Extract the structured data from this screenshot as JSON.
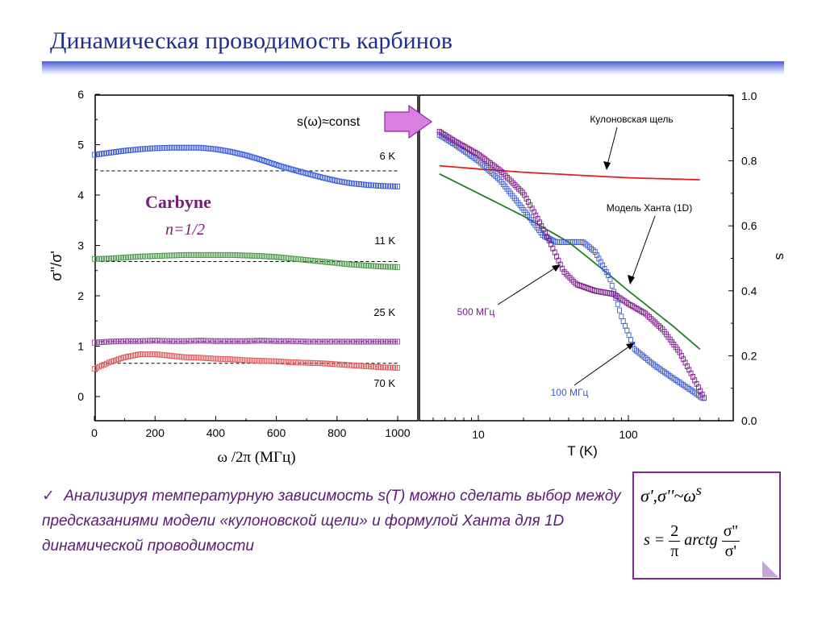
{
  "slide": {
    "title": "Динамическая проводимость карбинов"
  },
  "bullet": {
    "check": "✓",
    "text": "Анализируя температурную зависимость s(T) можно сделать выбор между предсказаниями модели «кулоновской щели» и формулой Ханта для 1D динамической  проводимости"
  },
  "formula": {
    "line1": "σ',σ''~ω",
    "line1_sup": "s",
    "line2_left": "s =",
    "line2_frac1_num": "2",
    "line2_frac1_den": "π",
    "line2_func": "arctg",
    "line2_frac2_num": "σ''",
    "line2_frac2_den": "σ'"
  },
  "chart_data": [
    {
      "type": "scatter",
      "xlabel": "ω /2π (МГц)",
      "ylabel": "σ''/σ'",
      "xlim": [
        0,
        1000
      ],
      "ylim": [
        -0.5,
        6
      ],
      "xticks": [
        "0",
        "200",
        "400",
        "600",
        "800",
        "1000"
      ],
      "yticks": [
        "0",
        "1",
        "2",
        "3",
        "4",
        "5",
        "6"
      ],
      "annotations": [
        "Carbyne",
        "n=1/2"
      ],
      "series": [
        {
          "name": "6 K",
          "color": "#3b5bd8",
          "ref": 4.48,
          "x": [
            0,
            50,
            100,
            150,
            200,
            250,
            300,
            350,
            400,
            450,
            500,
            550,
            600,
            650,
            700,
            750,
            800,
            850,
            900,
            950,
            1000
          ],
          "y": [
            4.8,
            4.84,
            4.88,
            4.91,
            4.93,
            4.94,
            4.94,
            4.94,
            4.91,
            4.86,
            4.79,
            4.7,
            4.6,
            4.51,
            4.43,
            4.35,
            4.28,
            4.23,
            4.2,
            4.18,
            4.17
          ]
        },
        {
          "name": "11 K",
          "color": "#4a9a4a",
          "ref": 2.68,
          "x": [
            0,
            50,
            100,
            150,
            200,
            250,
            300,
            350,
            400,
            450,
            500,
            550,
            600,
            650,
            700,
            750,
            800,
            850,
            900,
            950,
            1000
          ],
          "y": [
            2.73,
            2.74,
            2.76,
            2.78,
            2.79,
            2.8,
            2.81,
            2.81,
            2.81,
            2.81,
            2.8,
            2.79,
            2.77,
            2.74,
            2.71,
            2.68,
            2.65,
            2.62,
            2.6,
            2.58,
            2.57
          ]
        },
        {
          "name": "25 K",
          "color": "#9a4aa8",
          "ref": 1.09,
          "x": [
            0,
            50,
            100,
            150,
            200,
            250,
            300,
            350,
            400,
            450,
            500,
            550,
            600,
            650,
            700,
            750,
            800,
            850,
            900,
            950,
            1000
          ],
          "y": [
            1.07,
            1.09,
            1.1,
            1.1,
            1.11,
            1.1,
            1.1,
            1.11,
            1.1,
            1.1,
            1.1,
            1.11,
            1.1,
            1.1,
            1.09,
            1.09,
            1.09,
            1.09,
            1.09,
            1.09,
            1.09
          ]
        },
        {
          "name": "70 K",
          "color": "#e05a5a",
          "ref": 0.66,
          "x": [
            0,
            50,
            100,
            150,
            200,
            250,
            300,
            350,
            400,
            450,
            500,
            550,
            600,
            650,
            700,
            750,
            800,
            850,
            900,
            950,
            1000
          ],
          "y": [
            0.55,
            0.68,
            0.78,
            0.84,
            0.84,
            0.81,
            0.78,
            0.77,
            0.75,
            0.74,
            0.72,
            0.71,
            0.7,
            0.68,
            0.67,
            0.66,
            0.64,
            0.62,
            0.6,
            0.58,
            0.57
          ]
        }
      ]
    },
    {
      "type": "line",
      "xlabel": "T (K)",
      "ylabel": "s",
      "xscale": "log",
      "xlim": [
        4,
        450
      ],
      "ylim": [
        0,
        1.0
      ],
      "xticks": [
        "10",
        "100"
      ],
      "yticks": [
        "0.0",
        "0.2",
        "0.4",
        "0.6",
        "0.8",
        "1.0"
      ],
      "annotations": [
        "Кулоновская щель",
        "Модель Ханта (1D)",
        "500 МГц",
        "100 МГц"
      ],
      "series": [
        {
          "name": "Кулоновская щель",
          "color": "#e02020",
          "style": "line",
          "x": [
            5.5,
            10,
            20,
            50,
            100,
            200,
            300
          ],
          "y": [
            0.785,
            0.775,
            0.765,
            0.755,
            0.748,
            0.744,
            0.742
          ]
        },
        {
          "name": "Модель Ханта (1D)",
          "color": "#208020",
          "style": "line",
          "x": [
            5.5,
            10,
            20,
            40,
            70,
            100,
            200,
            300
          ],
          "y": [
            0.76,
            0.7,
            0.63,
            0.55,
            0.46,
            0.4,
            0.29,
            0.22
          ]
        },
        {
          "name": "100 МГц",
          "color": "#3b5bd8",
          "style": "marker",
          "x": [
            5.5,
            7,
            10,
            14,
            20,
            27,
            33,
            40,
            50,
            60,
            75,
            90,
            110,
            150,
            200,
            270,
            310
          ],
          "y": [
            0.88,
            0.85,
            0.8,
            0.74,
            0.65,
            0.57,
            0.55,
            0.55,
            0.55,
            0.52,
            0.44,
            0.32,
            0.22,
            0.17,
            0.13,
            0.09,
            0.07
          ]
        },
        {
          "name": "500 МГц",
          "color": "#7a1a8a",
          "style": "marker",
          "x": [
            5.5,
            7,
            10,
            14,
            20,
            25,
            30,
            37,
            45,
            60,
            80,
            100,
            130,
            170,
            220,
            280,
            320
          ],
          "y": [
            0.89,
            0.86,
            0.82,
            0.77,
            0.7,
            0.62,
            0.55,
            0.46,
            0.42,
            0.4,
            0.39,
            0.36,
            0.33,
            0.28,
            0.21,
            0.12,
            0.07
          ]
        }
      ]
    }
  ],
  "arrow_label": "s(ω)≈const"
}
